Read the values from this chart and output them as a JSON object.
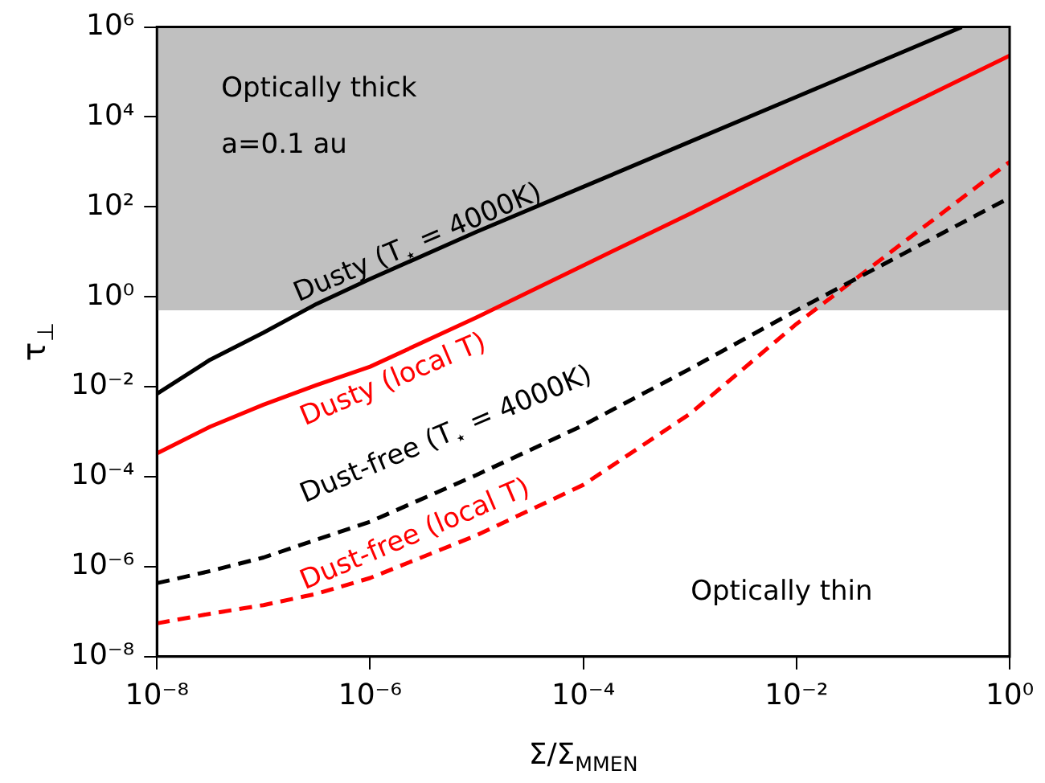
{
  "chart_data": {
    "type": "line",
    "xlabel": "Σ/Σ$_{MMEN}$",
    "ylabel": "τ$_{⊥}$",
    "log": "xy",
    "grid": false,
    "legend": false,
    "line_style": "solid",
    "marker": "none",
    "x": [
      1e-08,
      3.16e-08,
      1e-07,
      3.16e-07,
      1e-06,
      1e-05,
      0.0001,
      0.001,
      0.01,
      0.1,
      1
    ],
    "xlim": [
      1e-08,
      1
    ],
    "ylim": [
      1e-08,
      1000000.0
    ],
    "xticks": [
      {
        "value": 1e-08,
        "label": "10⁻⁸"
      },
      {
        "value": 1e-06,
        "label": "10⁻⁶"
      },
      {
        "value": 0.0001,
        "label": "10⁻⁴"
      },
      {
        "value": 0.01,
        "label": "10⁻²"
      },
      {
        "value": 1,
        "label": "10⁰"
      }
    ],
    "yticks": [
      {
        "value": 1e-08,
        "label": "10⁻⁸"
      },
      {
        "value": 1e-06,
        "label": "10⁻⁶"
      },
      {
        "value": 0.0001,
        "label": "10⁻⁴"
      },
      {
        "value": 0.01,
        "label": "10⁻²"
      },
      {
        "value": 1,
        "label": "10⁰"
      },
      {
        "value": 100,
        "label": "10²"
      },
      {
        "value": 10000,
        "label": "10⁴"
      },
      {
        "value": 1000000.0,
        "label": "10⁶"
      }
    ],
    "bands": [
      {
        "axis": "y",
        "from": 0.5,
        "to": 1000000.0,
        "color": "#c0c0c0"
      }
    ],
    "series": [
      {
        "color": "#000000",
        "x": [
          1e-08,
          3.16e-08,
          1e-07,
          3.16e-07,
          1e-06,
          1e-05,
          0.0001,
          0.001,
          0.01,
          0.1,
          0.355
        ],
        "values": [
          0.007,
          0.04,
          0.16,
          0.7,
          2.5,
          28,
          280,
          2800,
          28000,
          280000,
          1000000
        ]
      },
      {
        "color": "#ff0000",
        "values": [
          0.00033,
          0.0013,
          0.004,
          0.011,
          0.028,
          0.35,
          5,
          70,
          1100,
          16000,
          230000
        ]
      },
      {
        "color": "#000000",
        "line_style": "dashed",
        "values": [
          4.3e-07,
          8e-07,
          1.6e-06,
          4e-06,
          1e-05,
          0.00011,
          0.0014,
          0.025,
          0.5,
          9,
          160
        ]
      },
      {
        "color": "#ff0000",
        "line_style": "dashed",
        "values": [
          5.5e-08,
          9e-08,
          1.4e-07,
          2.5e-07,
          5.6e-07,
          5e-06,
          6.6e-05,
          0.0025,
          0.25,
          16,
          1000
        ]
      }
    ],
    "annotations": [
      "Optically thick",
      "a=0.1 au",
      "Optically thin",
      "Dusty (T$_{⋆}$ = 4000K)",
      "Dusty (local T)",
      "Dust-free (T$_{⋆}$ = 4000K)",
      "Dust-free (local T)"
    ]
  }
}
